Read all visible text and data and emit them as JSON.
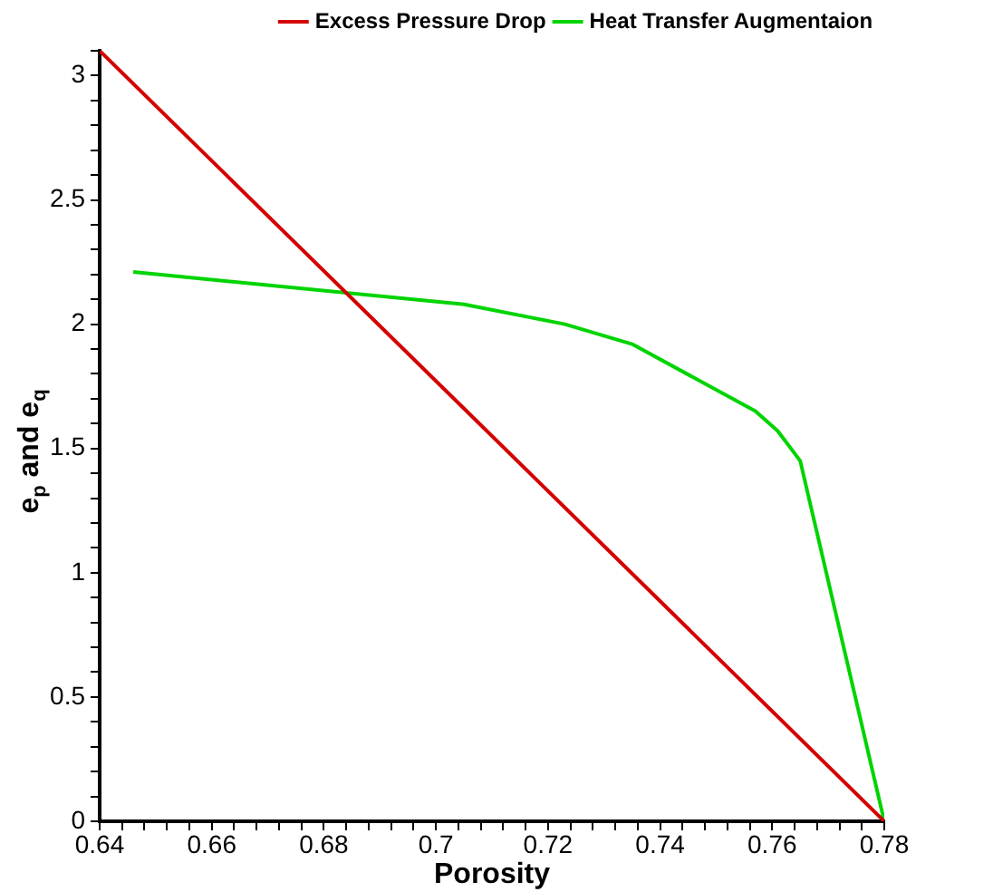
{
  "chart_data": {
    "type": "line",
    "xlabel": "Porosity",
    "ylabel": "e$_{p}$ and e$_{q}$",
    "xlim": [
      0.64,
      0.78
    ],
    "ylim": [
      0,
      3.1
    ],
    "xticks": [
      0.64,
      {
        "value": 0.644,
        "label": null
      },
      {
        "value": 0.648,
        "label": null
      },
      {
        "value": 0.652,
        "label": null
      },
      {
        "value": 0.656,
        "label": null
      },
      0.66,
      {
        "value": 0.664,
        "label": null
      },
      {
        "value": 0.668,
        "label": null
      },
      {
        "value": 0.672,
        "label": null
      },
      {
        "value": 0.676,
        "label": null
      },
      0.68,
      {
        "value": 0.684,
        "label": null
      },
      {
        "value": 0.688,
        "label": null
      },
      {
        "value": 0.692,
        "label": null
      },
      {
        "value": 0.696,
        "label": null
      },
      {
        "value": 0.7,
        "label": "0.7"
      },
      {
        "value": 0.704,
        "label": null
      },
      {
        "value": 0.708,
        "label": null
      },
      {
        "value": 0.712,
        "label": null
      },
      {
        "value": 0.716,
        "label": null
      },
      0.72,
      {
        "value": 0.724,
        "label": null
      },
      {
        "value": 0.728,
        "label": null
      },
      {
        "value": 0.732,
        "label": null
      },
      {
        "value": 0.736,
        "label": null
      },
      0.74,
      {
        "value": 0.744,
        "label": null
      },
      {
        "value": 0.748,
        "label": null
      },
      {
        "value": 0.752,
        "label": null
      },
      {
        "value": 0.756,
        "label": null
      },
      0.76,
      {
        "value": 0.764,
        "label": null
      },
      {
        "value": 0.768,
        "label": null
      },
      {
        "value": 0.772,
        "label": null
      },
      {
        "value": 0.776,
        "label": null
      },
      0.78
    ],
    "yticks": [
      0,
      {
        "value": 0.1,
        "label": null
      },
      {
        "value": 0.2,
        "label": null
      },
      {
        "value": 0.3,
        "label": null
      },
      {
        "value": 0.4,
        "label": null
      },
      0.5,
      {
        "value": 0.6,
        "label": null
      },
      {
        "value": 0.7,
        "label": null
      },
      {
        "value": 0.8,
        "label": null
      },
      {
        "value": 0.9,
        "label": null
      },
      1,
      {
        "value": 1.1,
        "label": null
      },
      {
        "value": 1.2,
        "label": null
      },
      {
        "value": 1.3,
        "label": null
      },
      {
        "value": 1.4,
        "label": null
      },
      1.5,
      {
        "value": 1.6,
        "label": null
      },
      {
        "value": 1.7,
        "label": null
      },
      {
        "value": 1.8,
        "label": null
      },
      {
        "value": 1.9,
        "label": null
      },
      2,
      {
        "value": 2.1,
        "label": null
      },
      {
        "value": 2.2,
        "label": null
      },
      {
        "value": 2.3,
        "label": null
      },
      {
        "value": 2.4,
        "label": null
      },
      2.5,
      {
        "value": 2.6,
        "label": null
      },
      {
        "value": 2.7,
        "label": null
      },
      {
        "value": 2.8,
        "label": null
      },
      {
        "value": 2.9,
        "label": null
      },
      3,
      {
        "value": 3.1,
        "label": null
      }
    ],
    "grid": false,
    "legend": "top right",
    "marker": "none",
    "line_style": "solid",
    "series": [
      {
        "name": "Excess Pressure Drop",
        "color": "#d40000",
        "x": [
          0.64,
          0.78
        ],
        "values": [
          3.1,
          0
        ]
      },
      {
        "name": "Heat Transfer Augmentaion",
        "color": "#00d400",
        "x": [
          0.646,
          0.705,
          0.723,
          0.735,
          0.757,
          0.761,
          0.765,
          0.78
        ],
        "values": [
          2.21,
          2.08,
          2.0,
          1.92,
          1.65,
          1.57,
          1.45,
          0
        ]
      }
    ]
  }
}
